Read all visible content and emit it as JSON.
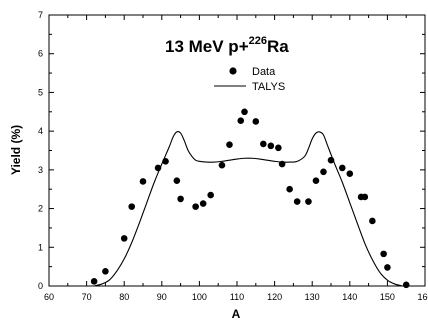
{
  "chart_data": {
    "type": "scatter",
    "title_main": "13 MeV p+",
    "title_sup": "226",
    "title_end": "Ra",
    "xlabel": "A",
    "ylabel": "Yield (%)",
    "xlim": [
      60,
      160
    ],
    "ylim": [
      0,
      7
    ],
    "x_ticks": [
      60,
      70,
      80,
      90,
      100,
      110,
      120,
      130,
      140,
      150,
      160
    ],
    "y_ticks": [
      0,
      1,
      2,
      3,
      4,
      5,
      6,
      7
    ],
    "legend_position": "top-right",
    "series": [
      {
        "name": "Data",
        "kind": "points",
        "x": [
          72,
          75,
          80,
          82,
          85,
          89,
          91,
          94,
          95,
          99,
          101,
          103,
          106,
          108,
          111,
          112,
          115,
          117,
          119,
          121,
          122,
          124,
          126,
          129,
          131,
          133,
          135,
          138,
          140,
          143,
          144,
          146,
          149,
          150,
          155
        ],
        "y": [
          0.12,
          0.38,
          1.23,
          2.05,
          2.7,
          3.05,
          3.22,
          2.72,
          2.25,
          2.05,
          2.13,
          2.35,
          3.12,
          3.65,
          4.27,
          4.5,
          4.25,
          3.67,
          3.62,
          3.57,
          3.15,
          2.5,
          2.18,
          2.18,
          2.72,
          2.95,
          3.25,
          3.05,
          2.9,
          2.3,
          2.3,
          1.68,
          0.83,
          0.48,
          0.03
        ]
      },
      {
        "name": "TALYS",
        "kind": "line",
        "x": [
          72,
          74,
          76,
          78,
          80,
          82,
          84,
          86,
          88,
          90,
          92,
          93,
          94,
          95,
          96,
          97,
          98,
          99,
          100,
          102,
          104,
          106,
          108,
          110,
          112,
          114,
          116,
          118,
          120,
          122,
          124,
          126,
          128,
          129,
          130,
          131,
          132,
          133,
          134,
          136,
          138,
          140,
          142,
          144,
          146,
          148,
          150,
          152,
          154
        ],
        "y": [
          0.0,
          0.05,
          0.15,
          0.38,
          0.7,
          1.12,
          1.62,
          2.15,
          2.68,
          3.15,
          3.6,
          3.85,
          3.98,
          3.95,
          3.75,
          3.5,
          3.35,
          3.25,
          3.22,
          3.2,
          3.2,
          3.22,
          3.25,
          3.28,
          3.3,
          3.3,
          3.28,
          3.25,
          3.22,
          3.2,
          3.2,
          3.22,
          3.35,
          3.55,
          3.8,
          3.95,
          3.98,
          3.9,
          3.65,
          3.15,
          2.68,
          2.15,
          1.62,
          1.1,
          0.68,
          0.35,
          0.15,
          0.05,
          0.0
        ]
      }
    ]
  }
}
